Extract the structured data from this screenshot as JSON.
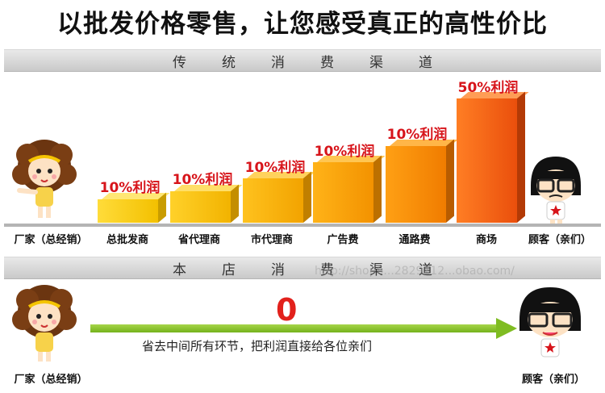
{
  "headline": "以批发价格零售，让您感受真正的高性价比",
  "traditional": {
    "banner": "传统消费渠道",
    "manufacturer_label": "厂家（总经销）",
    "customer_label": "顾客（亲们）",
    "channels": [
      {
        "label": "总批发商",
        "profit": "10%利润",
        "profit_percent": 10
      },
      {
        "label": "省代理商",
        "profit": "10%利润",
        "profit_percent": 10
      },
      {
        "label": "市代理商",
        "profit": "10%利润",
        "profit_percent": 10
      },
      {
        "label": "广告费",
        "profit": "10%利润",
        "profit_percent": 10
      },
      {
        "label": "通路费",
        "profit": "10%利润",
        "profit_percent": 10
      },
      {
        "label": "商场",
        "profit": "50%利润",
        "profit_percent": 50
      }
    ]
  },
  "store": {
    "banner": "本店消费渠道",
    "manufacturer_label": "厂家（总经销）",
    "customer_label": "顾客（亲们）",
    "profit": "0",
    "note": "省去中间所有环节，把利润直接给各位亲们"
  },
  "watermark": "http://shop6...2829212...obao.com/",
  "colors": {
    "profit_text": "#d7141a",
    "arrow_green": "#7fbc22",
    "bar_yellow": "#f5c400",
    "bar_orange": "#f07a00",
    "bar_red": "#e84c0e"
  }
}
